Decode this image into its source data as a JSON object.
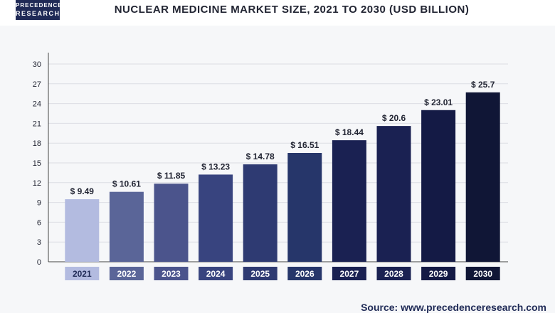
{
  "header": {
    "logo_line1": "PRECEDENCE",
    "logo_line2": "RESEARCH"
  },
  "chart_data": {
    "type": "bar",
    "title": "NUCLEAR MEDICINE MARKET SIZE, 2021 TO 2030 (USD BILLION)",
    "categories": [
      "2021",
      "2022",
      "2023",
      "2024",
      "2025",
      "2026",
      "2027",
      "2028",
      "2029",
      "2030"
    ],
    "values": [
      9.49,
      10.61,
      11.85,
      13.23,
      14.78,
      16.51,
      18.44,
      20.6,
      23.01,
      25.7
    ],
    "value_labels": [
      "$ 9.49",
      "$ 10.61",
      "$ 11.85",
      "$ 13.23",
      "$ 14.78",
      "$ 16.51",
      "$ 18.44",
      "$ 20.6",
      "$ 23.01",
      "$ 25.7"
    ],
    "yticks": [
      0,
      3,
      6,
      9,
      12,
      15,
      18,
      21,
      24,
      27,
      30
    ],
    "ylim": [
      0,
      30
    ],
    "xlabel": "",
    "ylabel": "",
    "grid": true,
    "bar_colors": [
      "#b3bbe0",
      "#5a6598",
      "#4b548c",
      "#38447f",
      "#2e3a72",
      "#26366a",
      "#1a2152",
      "#1a2152",
      "#141a45",
      "#101636"
    ],
    "tick_box_colors": [
      "#b3bbe0",
      "#5a6598",
      "#4b548c",
      "#38447f",
      "#2e3a72",
      "#26366a",
      "#1a2152",
      "#1a2152",
      "#141a45",
      "#101636"
    ]
  },
  "source": "Source: www.precedenceresearch.com"
}
